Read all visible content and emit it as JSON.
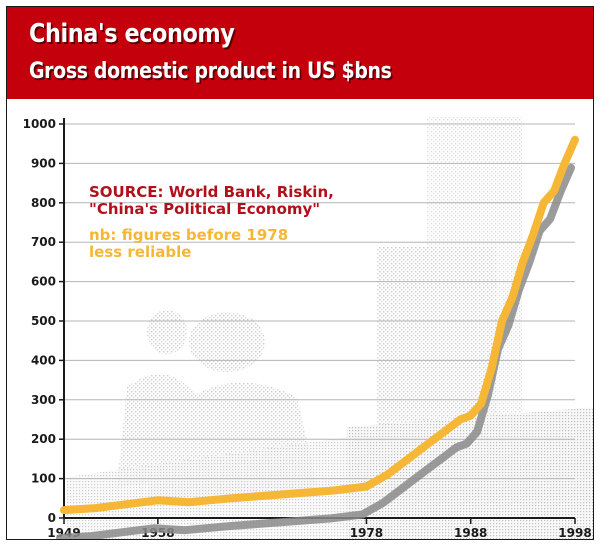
{
  "header": {
    "title": "China's economy",
    "subtitle": "Gross domestic product in US $bns"
  },
  "notes": {
    "source_line1": "SOURCE: World Bank, Riskin,",
    "source_line2": "\"China's Political Economy\"",
    "nb_line1": "nb: figures before 1978",
    "nb_line2": "less reliable"
  },
  "colors": {
    "header_bg": "#c4000c",
    "line": "#f5b735",
    "shadow": "#8a8a8a",
    "source_text": "#b0101a",
    "grid": "#b5b5b5"
  },
  "chart_data": {
    "type": "line",
    "title": "China's economy",
    "subtitle": "Gross domestic product in US $bns",
    "xlabel": "",
    "ylabel": "",
    "xlim": [
      1949,
      1998
    ],
    "ylim": [
      0,
      1000
    ],
    "y_ticks": [
      0,
      100,
      200,
      300,
      400,
      500,
      600,
      700,
      800,
      900,
      1000
    ],
    "x_ticks": [
      1949,
      1958,
      1978,
      1988,
      1998
    ],
    "grid": "horizontal",
    "legend": "none",
    "x": [
      1949,
      1952,
      1955,
      1958,
      1961,
      1965,
      1970,
      1975,
      1978,
      1980,
      1982,
      1984,
      1986,
      1987,
      1988,
      1989,
      1990,
      1991,
      1992,
      1993,
      1994,
      1995,
      1996,
      1997,
      1998
    ],
    "values": [
      20,
      25,
      35,
      45,
      40,
      50,
      60,
      70,
      80,
      110,
      150,
      190,
      230,
      250,
      260,
      290,
      380,
      500,
      560,
      650,
      720,
      800,
      830,
      900,
      960
    ]
  }
}
